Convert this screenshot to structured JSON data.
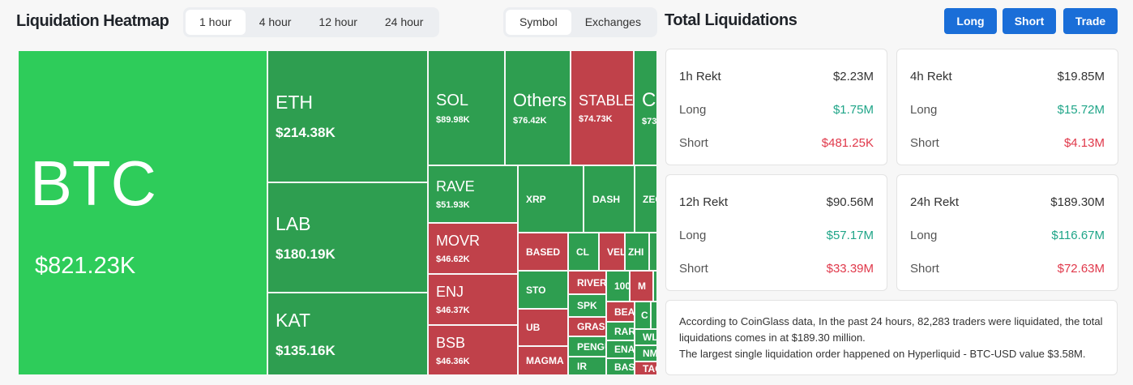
{
  "header": {
    "title": "Liquidation Heatmap",
    "time_tabs": [
      "1 hour",
      "4 hour",
      "12 hour",
      "24 hour"
    ],
    "active_time": "1 hour",
    "view_tabs": [
      "Symbol",
      "Exchanges"
    ],
    "active_view": "Symbol"
  },
  "colors": {
    "long_dominant": "#2e9e50",
    "short_dominant": "#c0414a",
    "largest": "#2ecc5a",
    "accent": "#1a6ed8"
  },
  "cells": [
    {
      "symbol": "BTC",
      "value": "$821.23K"
    },
    {
      "symbol": "ETH",
      "value": "$214.38K"
    },
    {
      "symbol": "LAB",
      "value": "$180.19K"
    },
    {
      "symbol": "KAT",
      "value": "$135.16K"
    },
    {
      "symbol": "SOL",
      "value": "$89.98K"
    },
    {
      "symbol": "Others",
      "value": "$76.42K"
    },
    {
      "symbol": "STABLE",
      "value": "$74.73K"
    },
    {
      "symbol": "C",
      "value": "$73"
    },
    {
      "symbol": "RAVE",
      "value": "$51.93K"
    },
    {
      "symbol": "MOVR",
      "value": "$46.62K"
    },
    {
      "symbol": "ENJ",
      "value": "$46.37K"
    },
    {
      "symbol": "BSB",
      "value": "$46.36K"
    },
    {
      "symbol": "XRP"
    },
    {
      "symbol": "DASH"
    },
    {
      "symbol": "ZEC"
    },
    {
      "symbol": "BASED"
    },
    {
      "symbol": "CL"
    },
    {
      "symbol": "VELV"
    },
    {
      "symbol": "ZHI"
    },
    {
      "symbol": "STO"
    },
    {
      "symbol": "UB"
    },
    {
      "symbol": "MAGMA"
    },
    {
      "symbol": "RIVER"
    },
    {
      "symbol": "SPK"
    },
    {
      "symbol": "GRASS"
    },
    {
      "symbol": "PENGU"
    },
    {
      "symbol": "IR"
    },
    {
      "symbol": "100"
    },
    {
      "symbol": "M"
    },
    {
      "symbol": "BEAT"
    },
    {
      "symbol": "C"
    },
    {
      "symbol": "RAR"
    },
    {
      "symbol": "ENA"
    },
    {
      "symbol": "BAS"
    },
    {
      "symbol": "WL"
    },
    {
      "symbol": "NM"
    },
    {
      "symbol": "TAO"
    }
  ],
  "right": {
    "title": "Total Liquidations",
    "buttons": [
      "Long",
      "Short",
      "Trade"
    ],
    "cards": [
      {
        "label": "1h Rekt",
        "total": "$2.23M",
        "long": "$1.75M",
        "short": "$481.25K"
      },
      {
        "label": "4h Rekt",
        "total": "$19.85M",
        "long": "$15.72M",
        "short": "$4.13M"
      },
      {
        "label": "12h Rekt",
        "total": "$90.56M",
        "long": "$57.17M",
        "short": "$33.39M"
      },
      {
        "label": "24h Rekt",
        "total": "$189.30M",
        "long": "$116.67M",
        "short": "$72.63M"
      }
    ],
    "long_label": "Long",
    "short_label": "Short",
    "summary_1": "According to CoinGlass data, In the past 24 hours, 82,283 traders were liquidated, the total liquidations comes in at $189.30 million.",
    "summary_2": "The largest single liquidation order happened on Hyperliquid - BTC-USD value $3.58M."
  }
}
